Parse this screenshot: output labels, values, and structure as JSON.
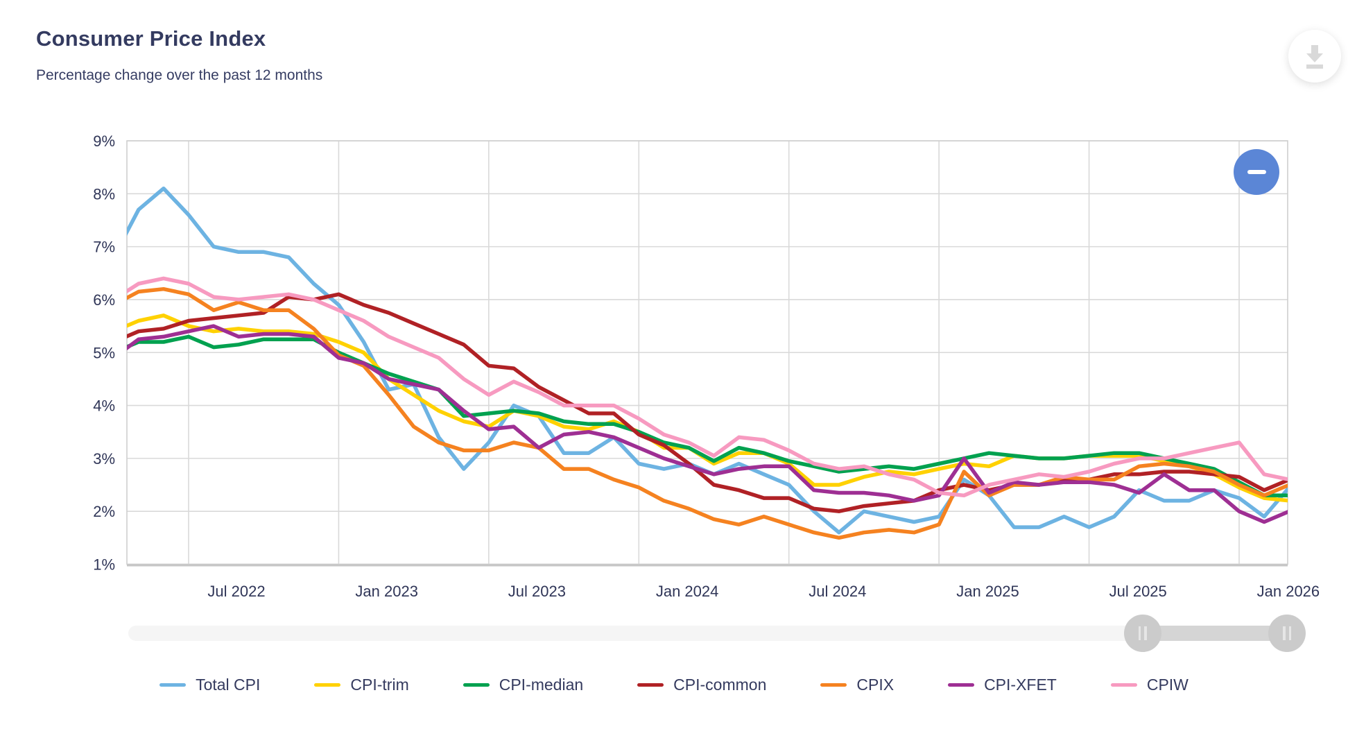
{
  "page": {
    "title": "Consumer Price Index",
    "subtitle": "Percentage change over the past 12 months"
  },
  "toolbar": {
    "download_icon": "download-icon",
    "zoom_out_icon": "minus-icon",
    "zoom_out_symbol": "−"
  },
  "colors": {
    "title_text": "#343b60",
    "axis_text": "#2f3557",
    "gridline": "#d9d9d9",
    "plot_border": "#cfcfcf",
    "axis_line": "#c6c6c6",
    "zoom_button": "#5b86d6",
    "download_glyph": "#d9d9d9",
    "slider_track": "#f5f5f5",
    "slider_range": "#d5d5d5",
    "slider_handle": "#cbcbcb"
  },
  "slider": {
    "range_start_frac": 0.863,
    "range_end_frac": 0.986
  },
  "chart_data": {
    "type": "line",
    "title": "Consumer Price Index",
    "subtitle": "Percentage change over the past 12 months",
    "grid": true,
    "legend_position": "bottom",
    "ylim": [
      1,
      9
    ],
    "y_tick_labels": [
      "1%",
      "2%",
      "3%",
      "4%",
      "5%",
      "6%",
      "7%",
      "8%",
      "9%"
    ],
    "x_tick_labels": [
      "Jul 2022",
      "Jan 2023",
      "Jul 2023",
      "Jan 2024",
      "Jul 2024",
      "Jan 2025",
      "Jul 2025",
      "Jan 2026"
    ],
    "x": [
      "Apr 2022",
      "May 2022",
      "Jun 2022",
      "Jul 2022",
      "Aug 2022",
      "Sep 2022",
      "Oct 2022",
      "Nov 2022",
      "Dec 2022",
      "Jan 2023",
      "Feb 2023",
      "Mar 2023",
      "Apr 2023",
      "May 2023",
      "Jun 2023",
      "Jul 2023",
      "Aug 2023",
      "Sep 2023",
      "Oct 2023",
      "Nov 2023",
      "Dec 2023",
      "Jan 2024",
      "Feb 2024",
      "Mar 2024",
      "Apr 2024",
      "May 2024",
      "Jun 2024",
      "Jul 2024",
      "Aug 2024",
      "Sep 2024",
      "Oct 2024",
      "Nov 2024",
      "Dec 2024",
      "Jan 2025",
      "Feb 2025",
      "Mar 2025",
      "Apr 2025",
      "May 2025",
      "Jun 2025",
      "Jul 2025",
      "Aug 2025",
      "Sep 2025",
      "Oct 2025",
      "Nov 2025",
      "Dec 2025",
      "Jan 2026",
      "Feb 2026",
      "Mar 2026"
    ],
    "series": [
      {
        "name": "Total CPI",
        "color": "#6db3e2",
        "values": [
          6.8,
          7.7,
          8.1,
          7.6,
          7.0,
          6.9,
          6.9,
          6.8,
          6.3,
          5.9,
          5.2,
          4.3,
          4.4,
          3.4,
          2.8,
          3.3,
          4.0,
          3.8,
          3.1,
          3.1,
          3.4,
          2.9,
          2.8,
          2.9,
          2.7,
          2.9,
          2.7,
          2.5,
          2.0,
          1.6,
          2.0,
          1.9,
          1.8,
          1.9,
          2.6,
          2.3,
          1.7,
          1.7,
          1.9,
          1.7,
          1.9,
          2.4,
          2.2,
          2.2,
          2.4,
          2.25,
          1.9,
          2.45
        ]
      },
      {
        "name": "CPI-trim",
        "color": "#ffd100",
        "values": [
          5.4,
          5.6,
          5.7,
          5.5,
          5.4,
          5.45,
          5.4,
          5.4,
          5.35,
          5.2,
          5.0,
          4.5,
          4.2,
          3.9,
          3.7,
          3.6,
          3.9,
          3.8,
          3.6,
          3.55,
          3.7,
          3.5,
          3.2,
          3.2,
          2.9,
          3.1,
          3.1,
          2.9,
          2.5,
          2.5,
          2.65,
          2.75,
          2.7,
          2.8,
          2.9,
          2.85,
          3.05,
          3.0,
          3.0,
          3.05,
          3.05,
          3.05,
          2.95,
          2.85,
          2.7,
          2.45,
          2.25,
          2.2
        ]
      },
      {
        "name": "CPI-median",
        "color": "#00a14f",
        "values": [
          5.0,
          5.2,
          5.2,
          5.3,
          5.1,
          5.15,
          5.25,
          5.25,
          5.25,
          5.0,
          4.8,
          4.6,
          4.45,
          4.3,
          3.8,
          3.85,
          3.9,
          3.85,
          3.7,
          3.65,
          3.65,
          3.5,
          3.3,
          3.2,
          2.95,
          3.2,
          3.1,
          2.95,
          2.85,
          2.75,
          2.8,
          2.85,
          2.8,
          2.9,
          3.0,
          3.1,
          3.05,
          3.0,
          3.0,
          3.05,
          3.1,
          3.1,
          3.0,
          2.9,
          2.8,
          2.55,
          2.3,
          2.3
        ]
      },
      {
        "name": "CPI-common",
        "color": "#b02125",
        "values": [
          5.2,
          5.4,
          5.45,
          5.6,
          5.65,
          5.7,
          5.75,
          6.05,
          6.0,
          6.1,
          5.9,
          5.75,
          5.55,
          5.35,
          5.15,
          4.75,
          4.7,
          4.35,
          4.1,
          3.85,
          3.85,
          3.45,
          3.25,
          2.9,
          2.5,
          2.4,
          2.25,
          2.25,
          2.05,
          2.0,
          2.1,
          2.15,
          2.2,
          2.4,
          2.5,
          2.4,
          2.5,
          2.5,
          2.6,
          2.6,
          2.7,
          2.7,
          2.75,
          2.75,
          2.7,
          2.65,
          2.4,
          2.6
        ]
      },
      {
        "name": "CPIX",
        "color": "#f58220",
        "values": [
          5.9,
          6.15,
          6.2,
          6.1,
          5.8,
          5.95,
          5.8,
          5.8,
          5.45,
          4.95,
          4.75,
          4.2,
          3.6,
          3.3,
          3.15,
          3.15,
          3.3,
          3.2,
          2.8,
          2.8,
          2.6,
          2.45,
          2.2,
          2.05,
          1.85,
          1.75,
          1.9,
          1.75,
          1.6,
          1.5,
          1.6,
          1.65,
          1.6,
          1.75,
          2.75,
          2.3,
          2.5,
          2.5,
          2.65,
          2.6,
          2.6,
          2.85,
          2.9,
          2.85,
          2.75,
          2.5,
          2.3,
          2.5
        ]
      },
      {
        "name": "CPI-XFET",
        "color": "#9e2f93",
        "values": [
          4.9,
          5.25,
          5.3,
          5.4,
          5.5,
          5.3,
          5.35,
          5.35,
          5.3,
          4.9,
          4.8,
          4.5,
          4.4,
          4.3,
          3.9,
          3.55,
          3.6,
          3.2,
          3.45,
          3.5,
          3.4,
          3.2,
          3.0,
          2.85,
          2.7,
          2.8,
          2.85,
          2.85,
          2.4,
          2.35,
          2.35,
          2.3,
          2.2,
          2.3,
          3.0,
          2.35,
          2.55,
          2.5,
          2.55,
          2.55,
          2.5,
          2.35,
          2.7,
          2.4,
          2.4,
          2.0,
          1.8,
          2.0
        ]
      },
      {
        "name": "CPIW",
        "color": "#f79ac0",
        "values": [
          6.0,
          6.3,
          6.4,
          6.3,
          6.05,
          6.0,
          6.05,
          6.1,
          6.0,
          5.8,
          5.6,
          5.3,
          5.1,
          4.9,
          4.5,
          4.2,
          4.45,
          4.25,
          4.0,
          4.0,
          4.0,
          3.75,
          3.45,
          3.3,
          3.05,
          3.4,
          3.35,
          3.15,
          2.9,
          2.8,
          2.85,
          2.7,
          2.6,
          2.35,
          2.3,
          2.5,
          2.6,
          2.7,
          2.65,
          2.75,
          2.9,
          3.0,
          3.0,
          3.1,
          3.2,
          3.3,
          2.7,
          2.6
        ]
      }
    ]
  }
}
